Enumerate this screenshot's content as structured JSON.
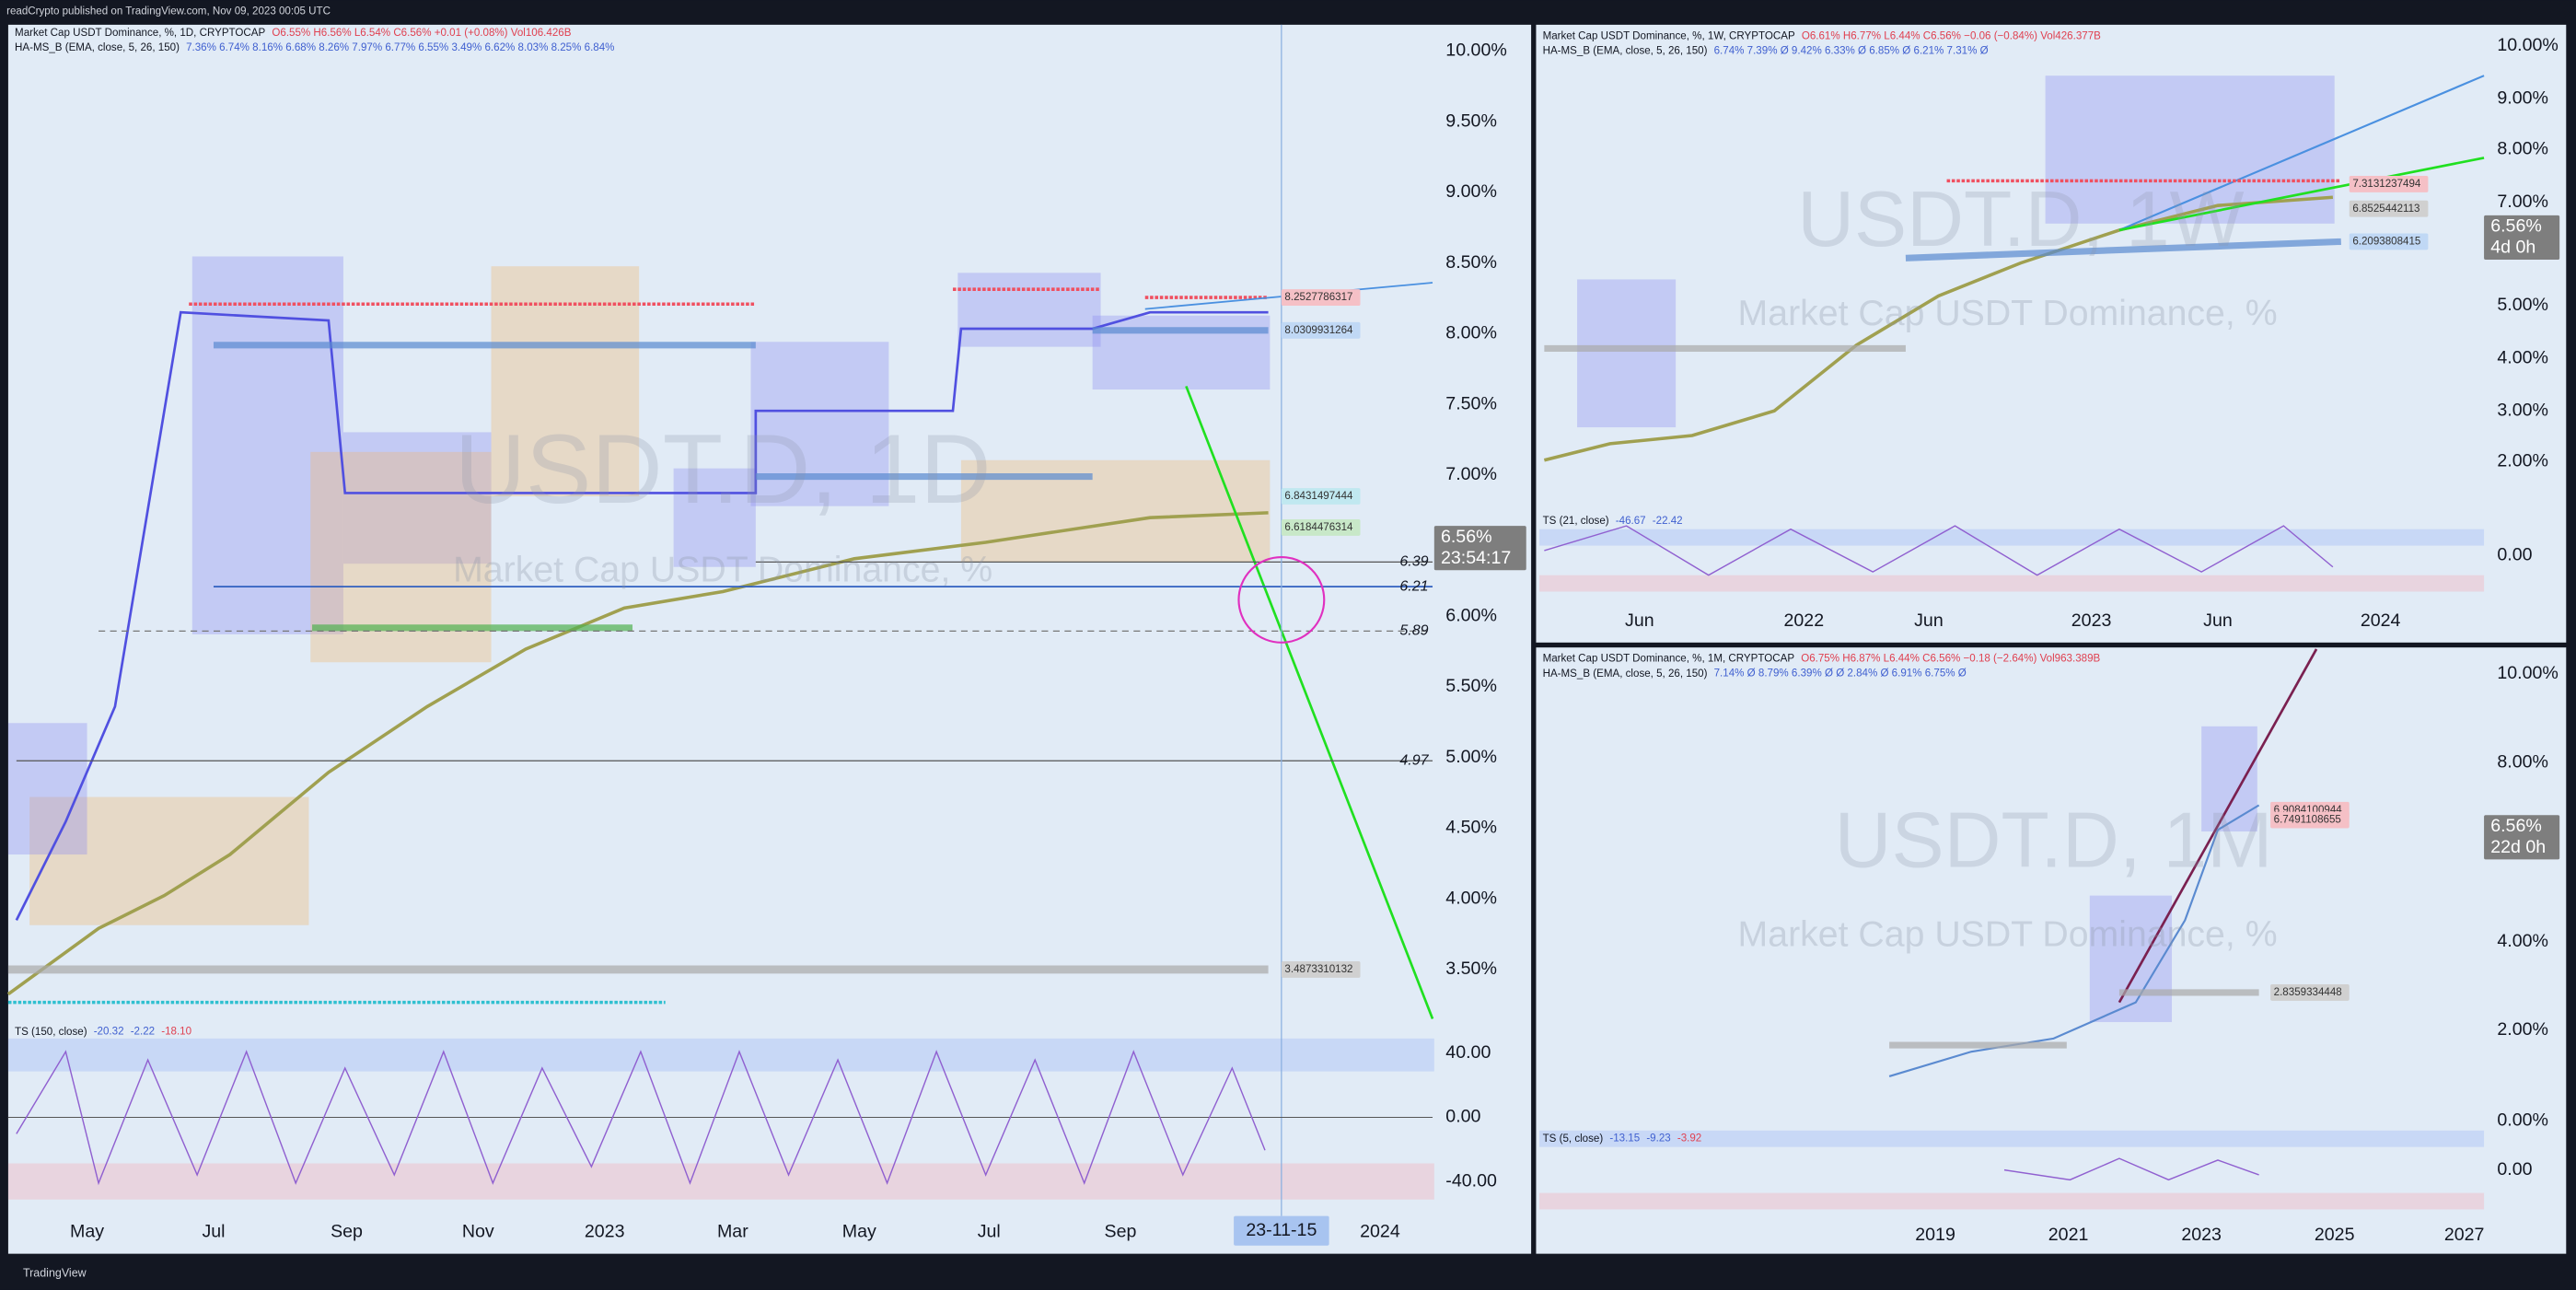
{
  "header": {
    "text": "readCrypto published on TradingView.com, Nov 09, 2023 00:05 UTC"
  },
  "footer": {
    "brand": "TradingView"
  },
  "panels": [
    {
      "legend1": "Market Cap USDT Dominance, %, 1D, CRYPTOCAP",
      "ohlc": "O6.55% H6.56% L6.54% C6.56% +0.01 (+0.08%) Vol106.426B",
      "legend2": "HA-MS_B (EMA, close, 5, 26, 150)",
      "legend2_values": "7.36% 6.74% 8.16% 6.68% 8.26% 7.97% 6.77% 6.55% 3.49% 6.62% 8.03% 8.25% 6.84%",
      "watermark": "USDT.D, 1D",
      "watermark_sub": "Market Cap USDT Dominance, %",
      "price_axis": [
        "10.00%",
        "9.50%",
        "9.00%",
        "8.50%",
        "8.00%",
        "7.50%",
        "7.00%",
        "6.00%",
        "5.50%",
        "5.00%",
        "4.50%",
        "4.00%",
        "3.50%"
      ],
      "price_labels": [
        "8.2527786317",
        "8.0309931264",
        "6.8431497444",
        "6.6184476314",
        "3.4873310132"
      ],
      "level_labels": [
        "6.39",
        "6.21",
        "5.89",
        "4.97"
      ],
      "last_price": "6.56%",
      "countdown": "23:54:17",
      "osc_legend": "TS (150, close)",
      "osc_values": [
        "-20.32",
        "-2.22",
        "-18.10"
      ],
      "osc_axis": [
        "40.00",
        "0.00",
        "-40.00"
      ],
      "time_axis": [
        "May",
        "Jul",
        "Sep",
        "Nov",
        "2023",
        "Mar",
        "May",
        "Jul",
        "Sep",
        "2024"
      ],
      "cursor_date": "23-11-15"
    },
    {
      "legend1": "Market Cap USDT Dominance, %, 1W, CRYPTOCAP",
      "ohlc": "O6.61% H6.77% L6.44% C6.56% −0.06 (−0.84%) Vol426.377B",
      "legend2": "HA-MS_B (EMA, close, 5, 26, 150)",
      "legend2_values": "6.74% 7.39% Ø 9.42% 6.33% Ø 6.85% Ø 6.21% 7.31% Ø",
      "watermark": "USDT.D, 1W",
      "watermark_sub": "Market Cap USDT Dominance, %",
      "price_axis": [
        "10.00%",
        "9.00%",
        "8.00%",
        "7.00%",
        "5.00%",
        "4.00%",
        "3.00%",
        "2.00%"
      ],
      "price_labels": [
        "7.3131237494",
        "6.8525442113",
        "6.2093808415"
      ],
      "last_price": "6.56%",
      "countdown": "4d 0h",
      "osc_legend": "TS (21, close)",
      "osc_values": [
        "-46.67",
        "-22.42"
      ],
      "osc_axis": [
        "0.00"
      ],
      "time_axis": [
        "Jun",
        "2022",
        "Jun",
        "2023",
        "Jun",
        "2024"
      ]
    },
    {
      "legend1": "Market Cap USDT Dominance, %, 1M, CRYPTOCAP",
      "ohlc": "O6.75% H6.87% L6.44% C6.56% −0.18 (−2.64%) Vol963.389B",
      "legend2": "HA-MS_B (EMA, close, 5, 26, 150)",
      "legend2_values": "7.14% Ø 8.79% 6.39% Ø Ø 2.84% Ø 6.91% 6.75% Ø",
      "watermark": "USDT.D, 1M",
      "watermark_sub": "Market Cap USDT Dominance, %",
      "price_axis": [
        "10.00%",
        "8.00%",
        "4.00%",
        "2.00%",
        "0.00%"
      ],
      "price_labels": [
        "6.9084100944",
        "6.7491108655",
        "2.8359334448"
      ],
      "last_price": "6.56%",
      "countdown": "22d 0h",
      "osc_legend": "TS (5, close)",
      "osc_values": [
        "-13.15",
        "-9.23",
        "-3.92"
      ],
      "osc_axis": [
        "0.00"
      ],
      "time_axis": [
        "2019",
        "2021",
        "2023",
        "2025",
        "2027"
      ]
    }
  ]
}
